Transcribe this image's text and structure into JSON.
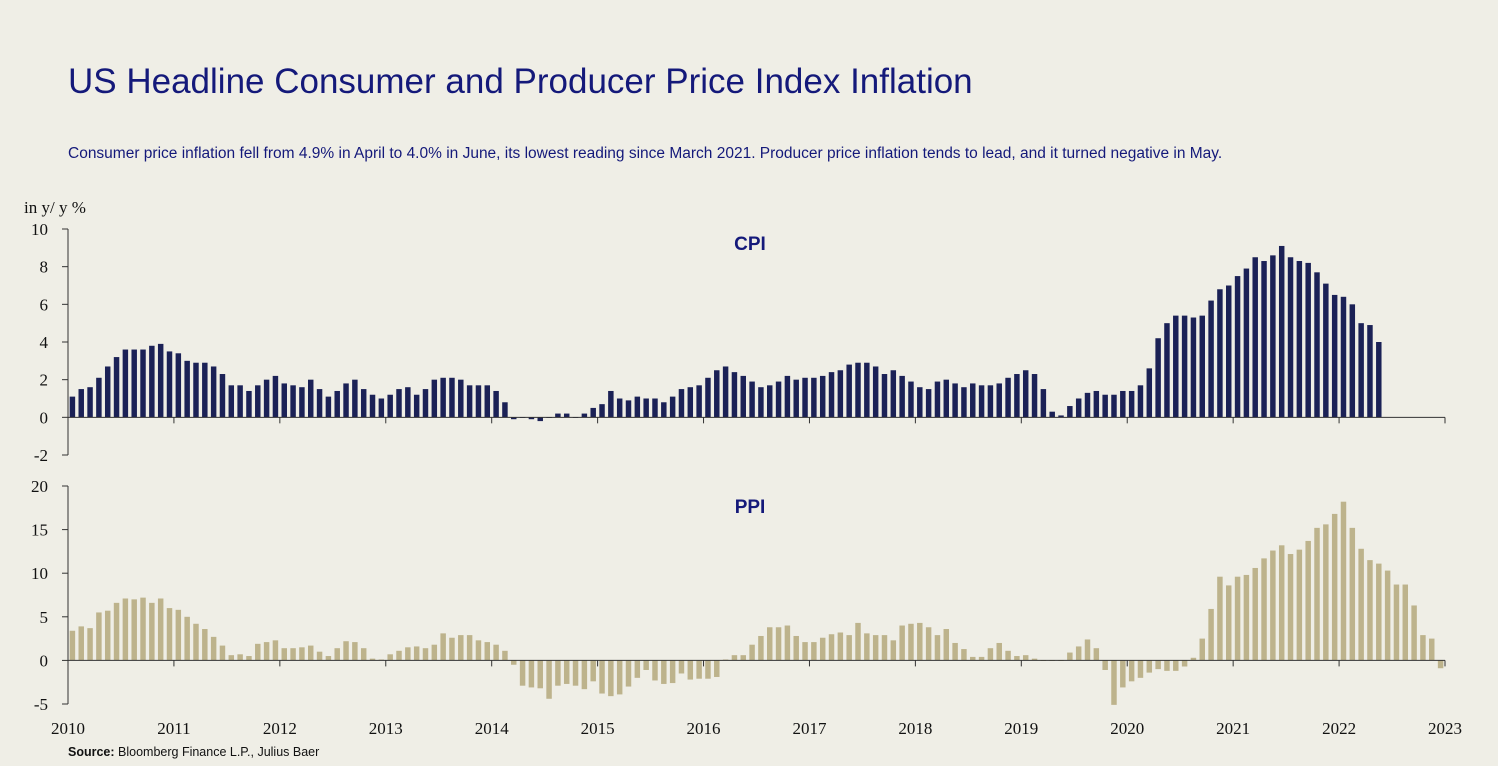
{
  "header": {
    "title": "US Headline Consumer and Producer Price Index Inflation",
    "subtitle": "Consumer price inflation fell from 4.9% in April to 4.0% in June, its lowest reading since March 2021. Producer price inflation tends to lead, and it turned negative in May."
  },
  "footer": {
    "source_label": "Source:",
    "source_text": " Bloomberg Finance L.P., Julius Baer"
  },
  "colors": {
    "background": "#efeee6",
    "title": "#14197a",
    "cpi_bars": "#1b2156",
    "ppi_bars": "#bdb38c"
  },
  "chart_data": [
    {
      "type": "bar",
      "title": "CPI",
      "ylabel": "in y/ y %",
      "ylim": [
        -2,
        10
      ],
      "yticks": [
        -2,
        0,
        2,
        4,
        6,
        8,
        10
      ],
      "xlim": [
        2010,
        2023
      ],
      "xticks": [
        "2010",
        "2011",
        "2012",
        "2013",
        "2014",
        "2015",
        "2016",
        "2017",
        "2018",
        "2019",
        "2020",
        "2021",
        "2022",
        "2023"
      ],
      "start": "2010-01",
      "frequency": "monthly",
      "values": [
        1.1,
        1.5,
        1.6,
        2.1,
        2.7,
        3.2,
        3.6,
        3.6,
        3.6,
        3.8,
        3.9,
        3.5,
        3.4,
        3.0,
        2.9,
        2.9,
        2.7,
        2.3,
        1.7,
        1.7,
        1.4,
        1.7,
        2.0,
        2.2,
        1.8,
        1.7,
        1.6,
        2.0,
        1.5,
        1.1,
        1.4,
        1.8,
        2.0,
        1.5,
        1.2,
        1.0,
        1.2,
        1.5,
        1.6,
        1.2,
        1.5,
        2.0,
        2.1,
        2.1,
        2.0,
        1.7,
        1.7,
        1.7,
        1.4,
        0.8,
        -0.1,
        0.0,
        -0.1,
        -0.2,
        0.0,
        0.2,
        0.2,
        0.0,
        0.2,
        0.5,
        0.7,
        1.4,
        1.0,
        0.9,
        1.1,
        1.0,
        1.0,
        0.8,
        1.1,
        1.5,
        1.6,
        1.7,
        2.1,
        2.5,
        2.7,
        2.4,
        2.2,
        1.9,
        1.6,
        1.7,
        1.9,
        2.2,
        2.0,
        2.1,
        2.1,
        2.2,
        2.4,
        2.5,
        2.8,
        2.9,
        2.9,
        2.7,
        2.3,
        2.5,
        2.2,
        1.9,
        1.6,
        1.5,
        1.9,
        2.0,
        1.8,
        1.6,
        1.8,
        1.7,
        1.7,
        1.8,
        2.1,
        2.3,
        2.5,
        2.3,
        1.5,
        0.3,
        0.1,
        0.6,
        1.0,
        1.3,
        1.4,
        1.2,
        1.2,
        1.4,
        1.4,
        1.7,
        2.6,
        4.2,
        5.0,
        5.4,
        5.4,
        5.3,
        5.4,
        6.2,
        6.8,
        7.0,
        7.5,
        7.9,
        8.5,
        8.3,
        8.6,
        9.1,
        8.5,
        8.3,
        8.2,
        7.7,
        7.1,
        6.5,
        6.4,
        6.0,
        5.0,
        4.9,
        4.0
      ]
    },
    {
      "type": "bar",
      "title": "PPI",
      "ylim": [
        -5,
        20
      ],
      "yticks": [
        -5,
        0,
        5,
        10,
        15,
        20
      ],
      "xlim": [
        2010,
        2023
      ],
      "xticks": [
        "2010",
        "2011",
        "2012",
        "2013",
        "2014",
        "2015",
        "2016",
        "2017",
        "2018",
        "2019",
        "2020",
        "2021",
        "2022",
        "2023"
      ],
      "start": "2010-01",
      "frequency": "monthly",
      "values": [
        3.4,
        3.9,
        3.7,
        5.5,
        5.7,
        6.6,
        7.1,
        7.0,
        7.2,
        6.6,
        7.1,
        6.0,
        5.8,
        5.0,
        4.2,
        3.6,
        2.7,
        1.7,
        0.6,
        0.7,
        0.5,
        1.9,
        2.1,
        2.3,
        1.4,
        1.4,
        1.5,
        1.7,
        1.0,
        0.5,
        1.4,
        2.2,
        2.1,
        1.4,
        0.2,
        0.1,
        0.7,
        1.1,
        1.5,
        1.6,
        1.4,
        1.8,
        3.1,
        2.6,
        2.9,
        2.9,
        2.3,
        2.1,
        1.8,
        1.1,
        -0.5,
        -2.9,
        -3.1,
        -3.2,
        -4.4,
        -2.9,
        -2.7,
        -2.9,
        -3.3,
        -2.4,
        -3.8,
        -4.1,
        -3.9,
        -3.0,
        -2.0,
        -1.1,
        -2.3,
        -2.7,
        -2.6,
        -1.5,
        -2.2,
        -2.1,
        -2.1,
        -1.9,
        0.1,
        0.6,
        0.6,
        1.8,
        2.8,
        3.8,
        3.8,
        4.0,
        2.8,
        2.1,
        2.1,
        2.6,
        3.0,
        3.2,
        2.9,
        4.3,
        3.1,
        2.9,
        2.9,
        2.3,
        4.0,
        4.2,
        4.3,
        3.8,
        2.9,
        3.6,
        2.0,
        1.3,
        0.4,
        0.4,
        1.4,
        2.0,
        1.1,
        0.5,
        0.6,
        0.2,
        0.0,
        0.0,
        0.0,
        0.9,
        1.6,
        2.4,
        1.4,
        -1.1,
        -5.1,
        -3.1,
        -2.4,
        -2.0,
        -1.4,
        -1.0,
        -1.2,
        -1.2,
        -0.7,
        0.3,
        2.5,
        5.9,
        9.6,
        8.6,
        9.6,
        9.8,
        10.6,
        11.7,
        12.6,
        13.2,
        12.2,
        12.7,
        13.7,
        15.2,
        15.6,
        16.8,
        18.2,
        15.2,
        12.8,
        11.5,
        11.1,
        10.3,
        8.7,
        8.7,
        6.3,
        2.9,
        2.5,
        -0.9
      ]
    }
  ]
}
